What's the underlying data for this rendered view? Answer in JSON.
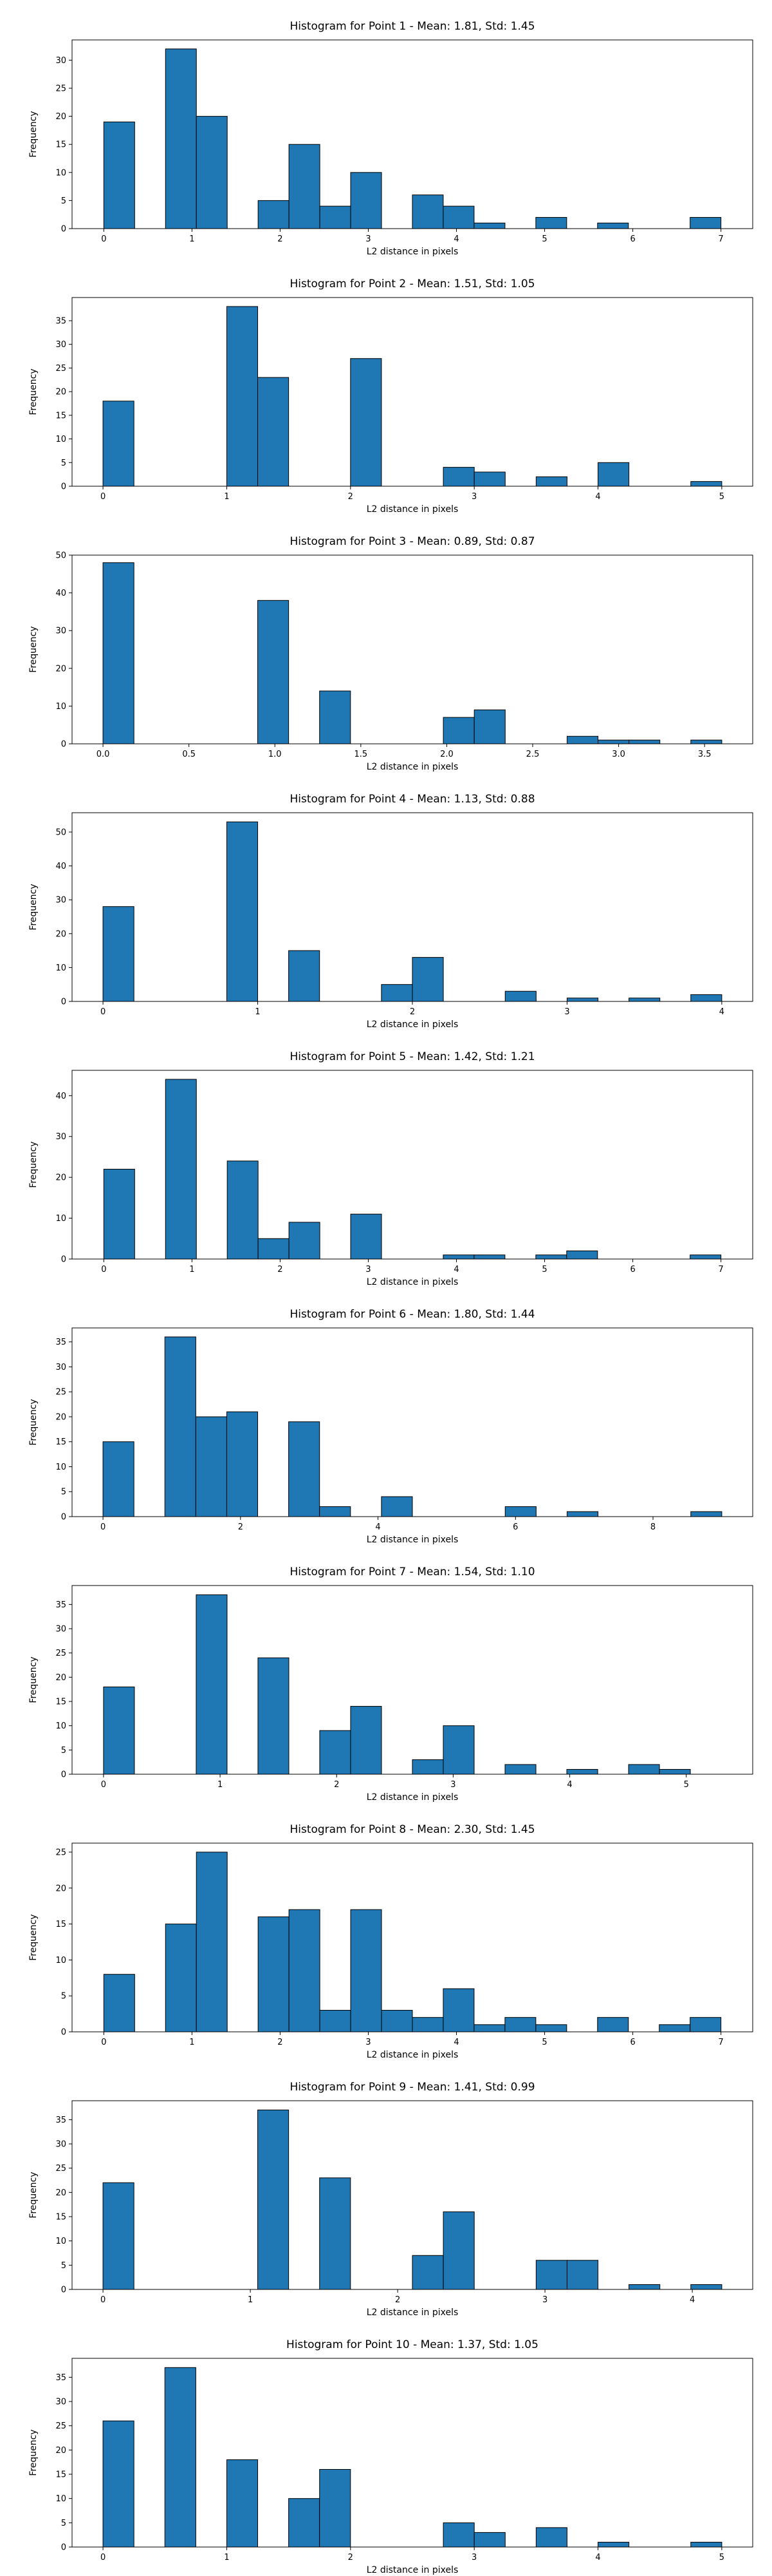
{
  "chart_data": [
    {
      "type": "bar",
      "title": "Histogram for Point 1 - Mean: 1.81, Std: 1.45",
      "xlabel": "L2 distance in pixels",
      "ylabel": "Frequency",
      "bar_color": "#1f77b4",
      "edge_color": "#000000",
      "xlim": [
        -0.36,
        7.36
      ],
      "ylim": [
        0,
        33.6
      ],
      "xticks": [
        0,
        1,
        2,
        3,
        4,
        5,
        6,
        7
      ],
      "xtick_labels": [
        "0",
        "1",
        "2",
        "3",
        "4",
        "5",
        "6",
        "7"
      ],
      "yticks": [
        0,
        5,
        10,
        15,
        20,
        25,
        30
      ],
      "ytick_labels": [
        "0",
        "5",
        "10",
        "15",
        "20",
        "25",
        "30"
      ],
      "bin_edges": [
        0,
        0.35,
        0.7,
        1.05,
        1.4,
        1.75,
        2.1,
        2.45,
        2.8,
        3.15,
        3.5,
        3.85,
        4.2,
        4.55,
        4.9,
        5.25,
        5.6,
        5.95,
        6.3,
        6.65,
        7.0
      ],
      "counts": [
        19,
        0,
        32,
        20,
        0,
        5,
        15,
        4,
        10,
        0,
        6,
        4,
        1,
        0,
        2,
        0,
        1,
        0,
        0,
        2
      ]
    },
    {
      "type": "bar",
      "title": "Histogram for Point 2 - Mean: 1.51, Std: 1.05",
      "xlabel": "L2 distance in pixels",
      "ylabel": "Frequency",
      "bar_color": "#1f77b4",
      "edge_color": "#000000",
      "xlim": [
        -0.25,
        5.25
      ],
      "ylim": [
        0,
        39.9
      ],
      "xticks": [
        0,
        1,
        2,
        3,
        4,
        5
      ],
      "xtick_labels": [
        "0",
        "1",
        "2",
        "3",
        "4",
        "5"
      ],
      "yticks": [
        0,
        5,
        10,
        15,
        20,
        25,
        30,
        35
      ],
      "ytick_labels": [
        "0",
        "5",
        "10",
        "15",
        "20",
        "25",
        "30",
        "35"
      ],
      "bin_edges": [
        0,
        0.25,
        0.5,
        0.75,
        1.0,
        1.25,
        1.5,
        1.75,
        2.0,
        2.25,
        2.5,
        2.75,
        3.0,
        3.25,
        3.5,
        3.75,
        4.0,
        4.25,
        4.5,
        4.75,
        5.0
      ],
      "counts": [
        18,
        0,
        0,
        0,
        38,
        23,
        0,
        0,
        27,
        0,
        0,
        4,
        3,
        0,
        2,
        0,
        5,
        0,
        0,
        1
      ]
    },
    {
      "type": "bar",
      "title": "Histogram for Point 3 - Mean: 0.89, Std: 0.87",
      "xlabel": "L2 distance in pixels",
      "ylabel": "Frequency",
      "bar_color": "#1f77b4",
      "edge_color": "#000000",
      "xlim": [
        -0.18,
        3.78
      ],
      "ylim": [
        0,
        50
      ],
      "xticks": [
        0,
        0.5,
        1.0,
        1.5,
        2.0,
        2.5,
        3.0,
        3.5
      ],
      "xtick_labels": [
        "0.0",
        "0.5",
        "1.0",
        "1.5",
        "2.0",
        "2.5",
        "3.0",
        "3.5"
      ],
      "yticks": [
        0,
        10,
        20,
        30,
        40,
        50
      ],
      "ytick_labels": [
        "0",
        "10",
        "20",
        "30",
        "40",
        "50"
      ],
      "bin_edges": [
        0,
        0.18,
        0.36,
        0.54,
        0.72,
        0.9,
        1.08,
        1.26,
        1.44,
        1.62,
        1.8,
        1.98,
        2.16,
        2.34,
        2.52,
        2.7,
        2.88,
        3.06,
        3.24,
        3.42,
        3.6
      ],
      "counts": [
        48,
        0,
        0,
        0,
        0,
        38,
        0,
        14,
        0,
        0,
        0,
        7,
        9,
        0,
        0,
        2,
        1,
        1,
        0,
        1
      ]
    },
    {
      "type": "bar",
      "title": "Histogram for Point 4 - Mean: 1.13, Std: 0.88",
      "xlabel": "L2 distance in pixels",
      "ylabel": "Frequency",
      "bar_color": "#1f77b4",
      "edge_color": "#000000",
      "xlim": [
        -0.2,
        4.2
      ],
      "ylim": [
        0,
        55.7
      ],
      "xticks": [
        0,
        1,
        2,
        3,
        4
      ],
      "xtick_labels": [
        "0",
        "1",
        "2",
        "3",
        "4"
      ],
      "yticks": [
        0,
        10,
        20,
        30,
        40,
        50
      ],
      "ytick_labels": [
        "0",
        "10",
        "20",
        "30",
        "40",
        "50"
      ],
      "bin_edges": [
        0,
        0.2,
        0.4,
        0.6,
        0.8,
        1.0,
        1.2,
        1.4,
        1.6,
        1.8,
        2.0,
        2.2,
        2.4,
        2.6,
        2.8,
        3.0,
        3.2,
        3.4,
        3.6,
        3.8,
        4.0
      ],
      "counts": [
        28,
        0,
        0,
        0,
        53,
        0,
        15,
        0,
        0,
        5,
        13,
        0,
        0,
        3,
        0,
        1,
        0,
        1,
        0,
        2
      ]
    },
    {
      "type": "bar",
      "title": "Histogram for Point 5 - Mean: 1.42, Std: 1.21",
      "xlabel": "L2 distance in pixels",
      "ylabel": "Frequency",
      "bar_color": "#1f77b4",
      "edge_color": "#000000",
      "xlim": [
        -0.36,
        7.36
      ],
      "ylim": [
        0,
        46.2
      ],
      "xticks": [
        0,
        1,
        2,
        3,
        4,
        5,
        6,
        7
      ],
      "xtick_labels": [
        "0",
        "1",
        "2",
        "3",
        "4",
        "5",
        "6",
        "7"
      ],
      "yticks": [
        0,
        10,
        20,
        30,
        40
      ],
      "ytick_labels": [
        "0",
        "10",
        "20",
        "30",
        "40"
      ],
      "bin_edges": [
        0,
        0.35,
        0.7,
        1.05,
        1.4,
        1.75,
        2.1,
        2.45,
        2.8,
        3.15,
        3.5,
        3.85,
        4.2,
        4.55,
        4.9,
        5.25,
        5.6,
        5.95,
        6.3,
        6.65,
        7.0
      ],
      "counts": [
        22,
        0,
        44,
        0,
        24,
        5,
        9,
        0,
        11,
        0,
        0,
        1,
        1,
        0,
        1,
        2,
        0,
        0,
        0,
        1
      ]
    },
    {
      "type": "bar",
      "title": "Histogram for Point 6 - Mean: 1.80, Std: 1.44",
      "xlabel": "L2 distance in pixels",
      "ylabel": "Frequency",
      "bar_color": "#1f77b4",
      "edge_color": "#000000",
      "xlim": [
        -0.45,
        9.45
      ],
      "ylim": [
        0,
        37.8
      ],
      "xticks": [
        0,
        2,
        4,
        6,
        8
      ],
      "xtick_labels": [
        "0",
        "2",
        "4",
        "6",
        "8"
      ],
      "yticks": [
        0,
        5,
        10,
        15,
        20,
        25,
        30,
        35
      ],
      "ytick_labels": [
        "0",
        "5",
        "10",
        "15",
        "20",
        "25",
        "30",
        "35"
      ],
      "bin_edges": [
        0,
        0.45,
        0.9,
        1.35,
        1.8,
        2.25,
        2.7,
        3.15,
        3.6,
        4.05,
        4.5,
        4.95,
        5.4,
        5.85,
        6.3,
        6.75,
        7.2,
        7.65,
        8.1,
        8.55,
        9.0
      ],
      "counts": [
        15,
        0,
        36,
        20,
        21,
        0,
        19,
        2,
        0,
        4,
        0,
        0,
        0,
        2,
        0,
        1,
        0,
        0,
        0,
        1
      ]
    },
    {
      "type": "bar",
      "title": "Histogram for Point 7 - Mean: 1.54, Std: 1.10",
      "xlabel": "L2 distance in pixels",
      "ylabel": "Frequency",
      "bar_color": "#1f77b4",
      "edge_color": "#000000",
      "xlim": [
        -0.27,
        5.57
      ],
      "ylim": [
        0,
        38.9
      ],
      "xticks": [
        0,
        1,
        2,
        3,
        4,
        5
      ],
      "xtick_labels": [
        "0",
        "1",
        "2",
        "3",
        "4",
        "5"
      ],
      "yticks": [
        0,
        5,
        10,
        15,
        20,
        25,
        30,
        35
      ],
      "ytick_labels": [
        "0",
        "5",
        "10",
        "15",
        "20",
        "25",
        "30",
        "35"
      ],
      "bin_edges": [
        0,
        0.265,
        0.53,
        0.795,
        1.06,
        1.325,
        1.59,
        1.855,
        2.12,
        2.385,
        2.65,
        2.915,
        3.18,
        3.445,
        3.71,
        3.975,
        4.24,
        4.505,
        4.77,
        5.035,
        5.3
      ],
      "counts": [
        18,
        0,
        0,
        37,
        0,
        24,
        0,
        9,
        14,
        0,
        3,
        10,
        0,
        2,
        0,
        1,
        0,
        2,
        1,
        0
      ]
    },
    {
      "type": "bar",
      "title": "Histogram for Point 8 - Mean: 2.30, Std: 1.45",
      "xlabel": "L2 distance in pixels",
      "ylabel": "Frequency",
      "bar_color": "#1f77b4",
      "edge_color": "#000000",
      "xlim": [
        -0.36,
        7.36
      ],
      "ylim": [
        0,
        26.25
      ],
      "xticks": [
        0,
        1,
        2,
        3,
        4,
        5,
        6,
        7
      ],
      "xtick_labels": [
        "0",
        "1",
        "2",
        "3",
        "4",
        "5",
        "6",
        "7"
      ],
      "yticks": [
        0,
        5,
        10,
        15,
        20,
        25
      ],
      "ytick_labels": [
        "0",
        "5",
        "10",
        "15",
        "20",
        "25"
      ],
      "bin_edges": [
        0,
        0.35,
        0.7,
        1.05,
        1.4,
        1.75,
        2.1,
        2.45,
        2.8,
        3.15,
        3.5,
        3.85,
        4.2,
        4.55,
        4.9,
        5.25,
        5.6,
        5.95,
        6.3,
        6.65,
        7.0
      ],
      "counts": [
        8,
        0,
        15,
        25,
        0,
        16,
        17,
        3,
        17,
        3,
        2,
        6,
        1,
        2,
        1,
        0,
        2,
        0,
        1,
        2
      ]
    },
    {
      "type": "bar",
      "title": "Histogram for Point 9 - Mean: 1.41, Std: 0.99",
      "xlabel": "L2 distance in pixels",
      "ylabel": "Frequency",
      "bar_color": "#1f77b4",
      "edge_color": "#000000",
      "xlim": [
        -0.21,
        4.41
      ],
      "ylim": [
        0,
        38.9
      ],
      "xticks": [
        0,
        1,
        2,
        3,
        4
      ],
      "xtick_labels": [
        "0",
        "1",
        "2",
        "3",
        "4"
      ],
      "yticks": [
        0,
        5,
        10,
        15,
        20,
        25,
        30,
        35
      ],
      "ytick_labels": [
        "0",
        "5",
        "10",
        "15",
        "20",
        "25",
        "30",
        "35"
      ],
      "bin_edges": [
        0,
        0.21,
        0.42,
        0.63,
        0.84,
        1.05,
        1.26,
        1.47,
        1.68,
        1.89,
        2.1,
        2.31,
        2.52,
        2.73,
        2.94,
        3.15,
        3.36,
        3.57,
        3.78,
        3.99,
        4.2
      ],
      "counts": [
        22,
        0,
        0,
        0,
        0,
        37,
        0,
        23,
        0,
        0,
        7,
        16,
        0,
        0,
        6,
        6,
        0,
        1,
        0,
        1
      ]
    },
    {
      "type": "bar",
      "title": "Histogram for Point 10 - Mean: 1.37, Std: 1.05",
      "xlabel": "L2 distance in pixels",
      "ylabel": "Frequency",
      "bar_color": "#1f77b4",
      "edge_color": "#000000",
      "xlim": [
        -0.25,
        5.25
      ],
      "ylim": [
        0,
        38.9
      ],
      "xticks": [
        0,
        1,
        2,
        3,
        4,
        5
      ],
      "xtick_labels": [
        "0",
        "1",
        "2",
        "3",
        "4",
        "5"
      ],
      "yticks": [
        0,
        5,
        10,
        15,
        20,
        25,
        30,
        35
      ],
      "ytick_labels": [
        "0",
        "5",
        "10",
        "15",
        "20",
        "25",
        "30",
        "35"
      ],
      "bin_edges": [
        0,
        0.25,
        0.5,
        0.75,
        1.0,
        1.25,
        1.5,
        1.75,
        2.0,
        2.25,
        2.5,
        2.75,
        3.0,
        3.25,
        3.5,
        3.75,
        4.0,
        4.25,
        4.5,
        4.75,
        5.0
      ],
      "counts": [
        26,
        0,
        37,
        0,
        18,
        0,
        10,
        16,
        0,
        0,
        0,
        5,
        3,
        0,
        4,
        0,
        1,
        0,
        0,
        1
      ]
    }
  ]
}
